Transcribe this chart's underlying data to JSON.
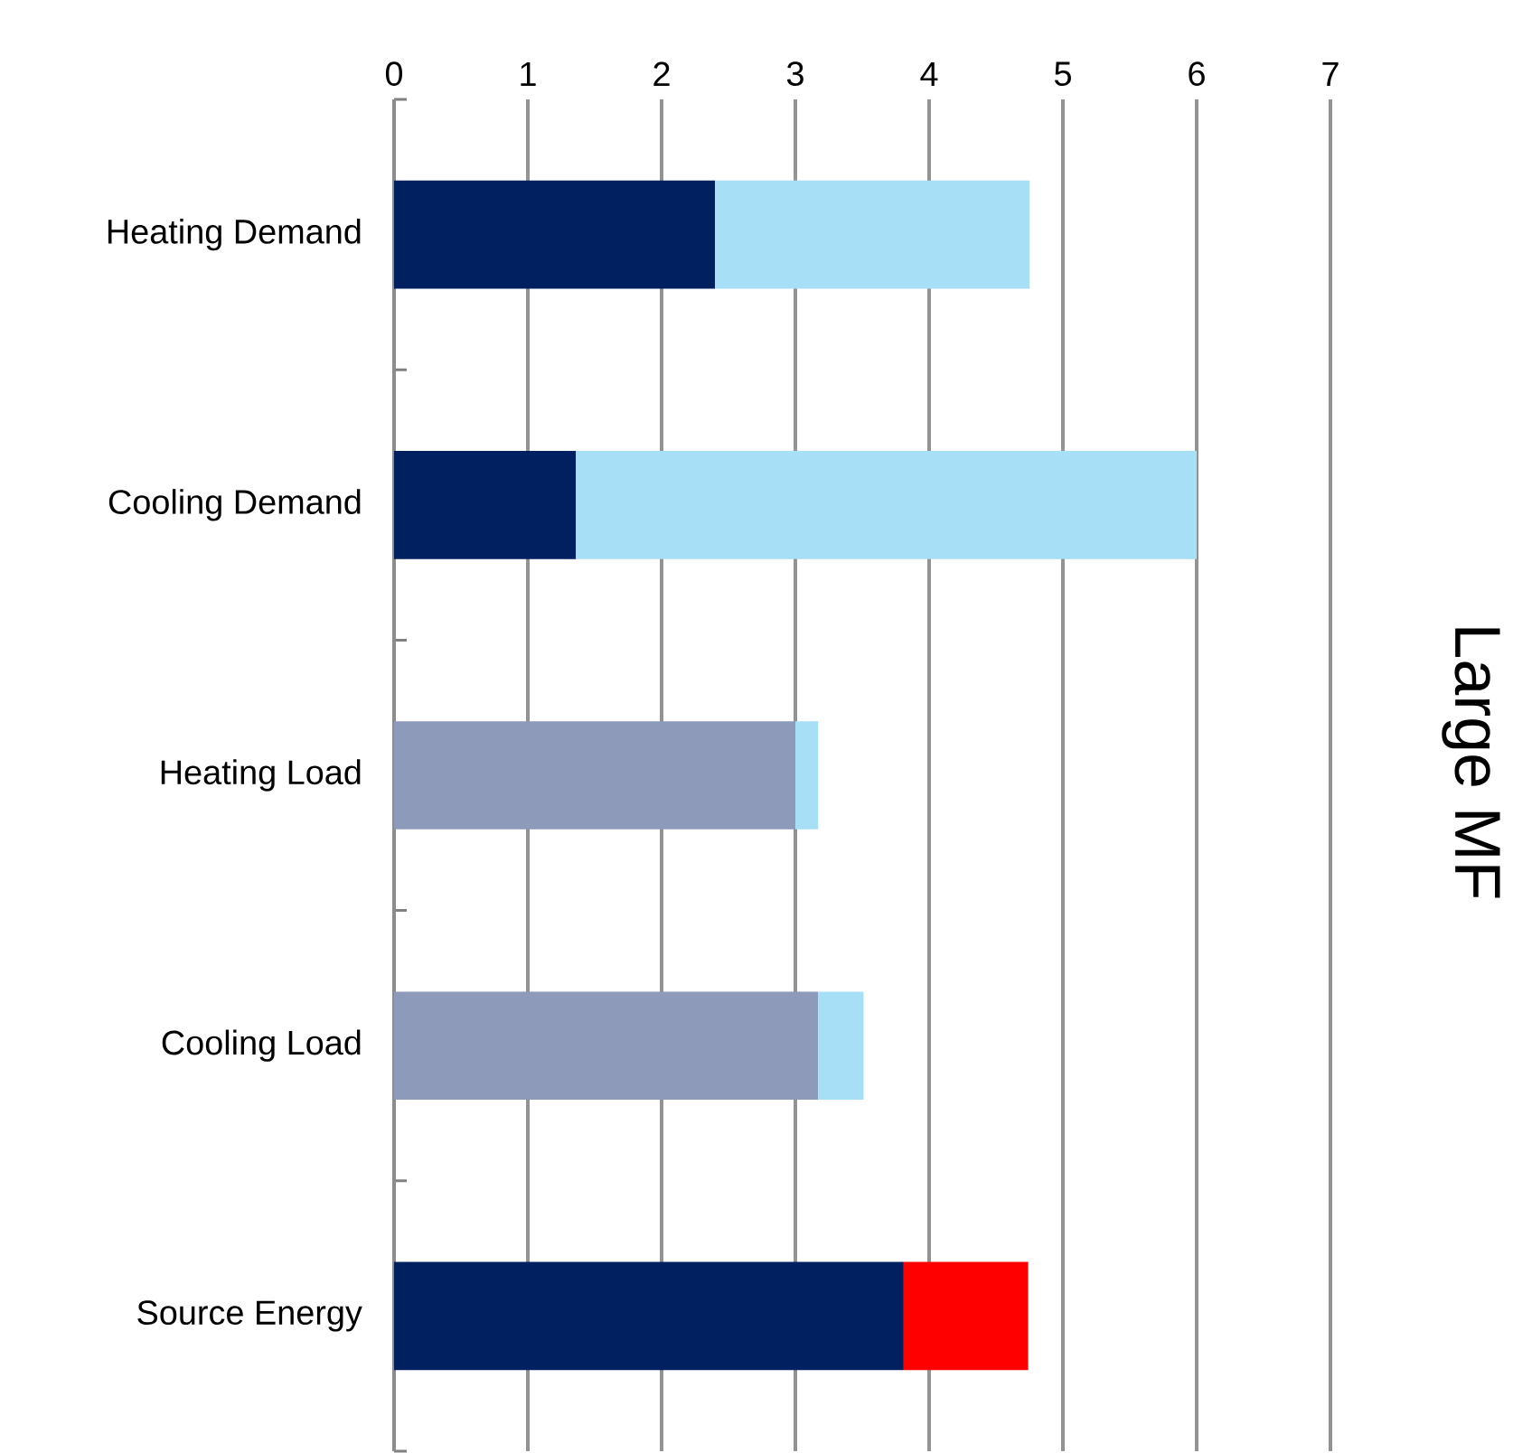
{
  "chart_data": {
    "type": "bar",
    "orientation": "horizontal",
    "stacked": true,
    "ylabel": "Large MF",
    "categories": [
      "Heating Demand",
      "Cooling Demand",
      "Heating Load",
      "Cooling Load",
      "Source Energy"
    ],
    "series": [
      {
        "colors": [
          "#002060",
          "#002060",
          "#8e9ab9",
          "#8e9ab9",
          "#002060"
        ],
        "values": [
          2.4,
          1.36,
          3.0,
          3.17,
          3.81
        ]
      },
      {
        "colors": [
          "#a6dff6",
          "#a6dff6",
          "#a6dff6",
          "#a6dff6",
          "#ff0000"
        ],
        "values": [
          2.35,
          4.64,
          0.17,
          0.34,
          0.93
        ]
      }
    ],
    "xlim": [
      0,
      7
    ],
    "xticks": [
      0,
      1,
      2,
      3,
      4,
      5,
      6,
      7
    ],
    "grid": "x"
  }
}
